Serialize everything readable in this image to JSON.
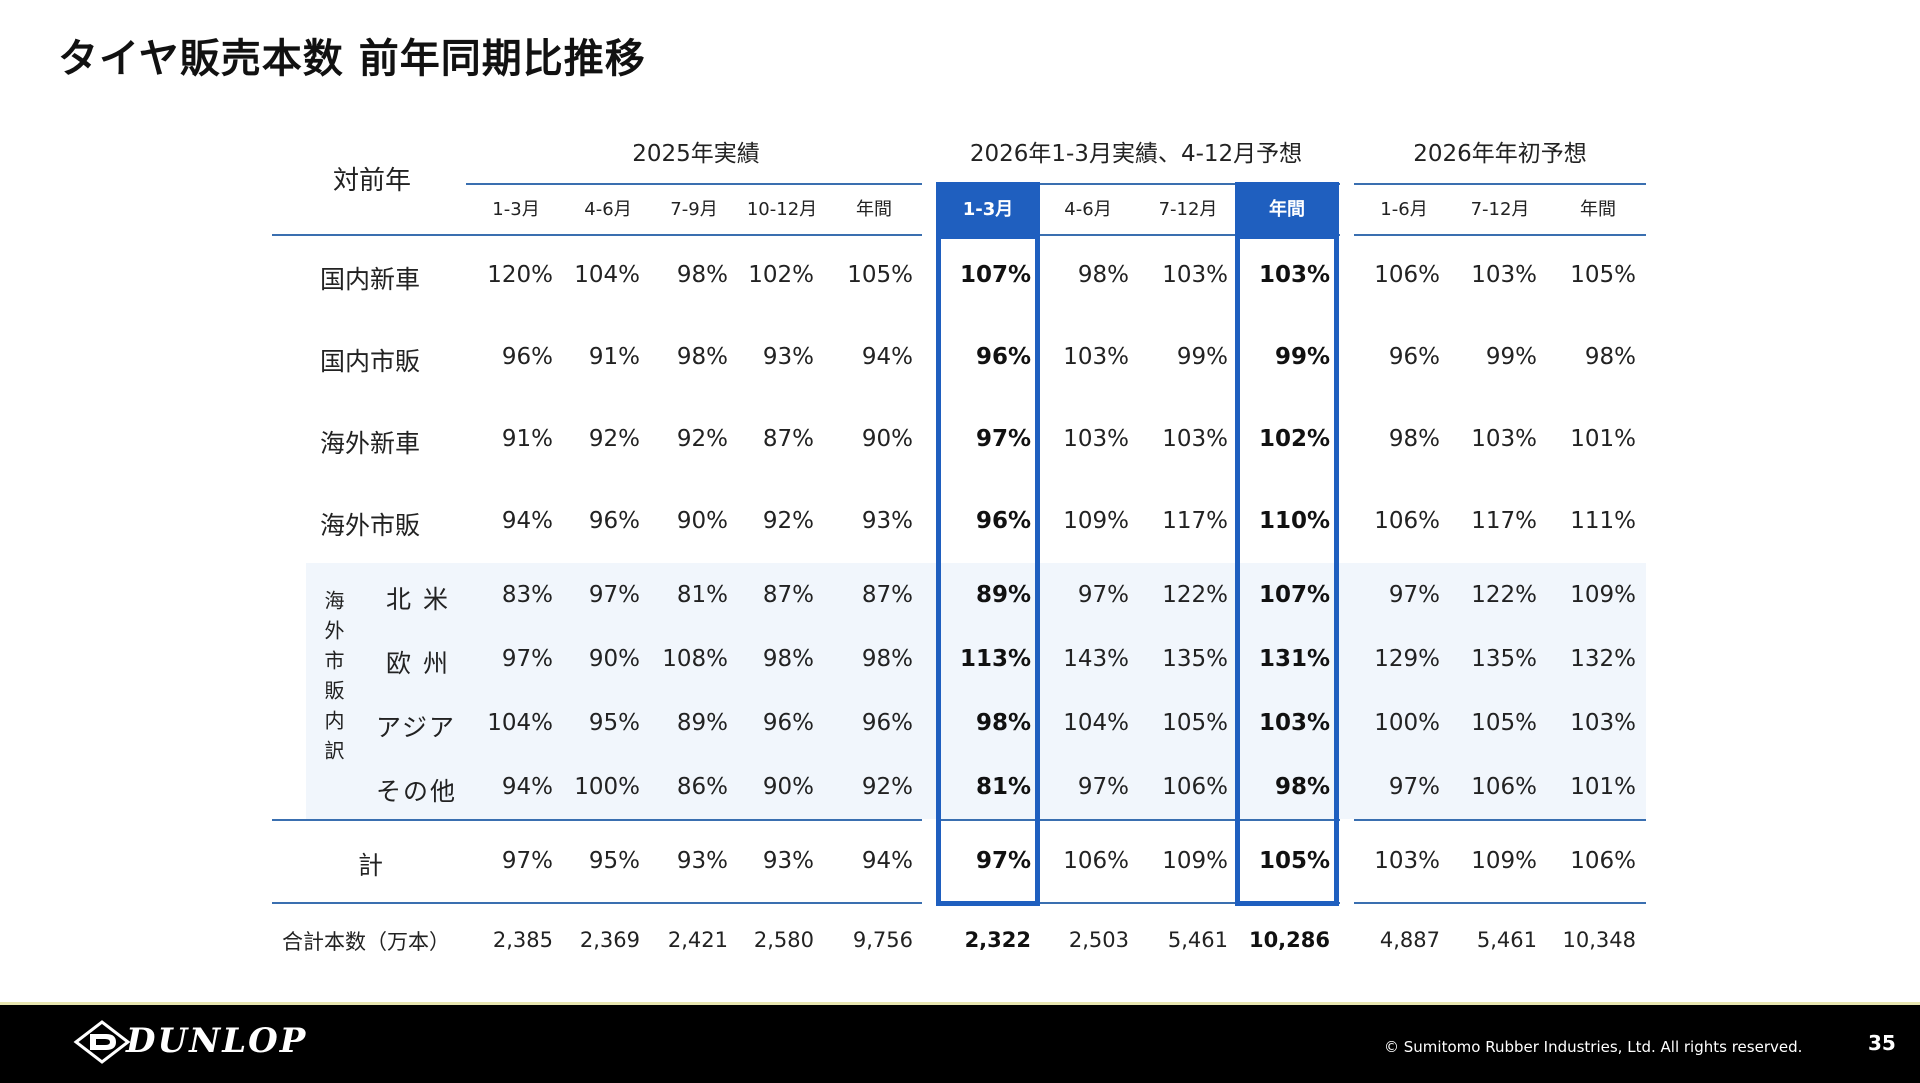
{
  "title": "タイヤ販売本数 前年同期比推移",
  "corner_label": "対前年",
  "groups": [
    {
      "label": "2025年実績"
    },
    {
      "label": "2026年1-3月実績、4-12月予想"
    },
    {
      "label": "2026年年初予想"
    }
  ],
  "columns": [
    "1-3月",
    "4-6月",
    "7-9月",
    "10-12月",
    "年間",
    "1-3月",
    "4-6月",
    "7-12月",
    "年間",
    "1-6月",
    "7-12月",
    "年間"
  ],
  "highlight_color": "#1f5fbf",
  "rows": [
    {
      "label": "国内新車",
      "values": [
        "120%",
        "104%",
        "98%",
        "102%",
        "105%",
        "107%",
        "98%",
        "103%",
        "103%",
        "106%",
        "103%",
        "105%"
      ]
    },
    {
      "label": "国内市販",
      "values": [
        "96%",
        "91%",
        "98%",
        "93%",
        "94%",
        "96%",
        "103%",
        "99%",
        "99%",
        "96%",
        "99%",
        "98%"
      ]
    },
    {
      "label": "海外新車",
      "values": [
        "91%",
        "92%",
        "92%",
        "87%",
        "90%",
        "97%",
        "103%",
        "103%",
        "102%",
        "98%",
        "103%",
        "101%"
      ]
    },
    {
      "label": "海外市販",
      "values": [
        "94%",
        "96%",
        "90%",
        "92%",
        "93%",
        "96%",
        "109%",
        "117%",
        "110%",
        "106%",
        "117%",
        "111%"
      ]
    }
  ],
  "breakdown_label": "海外市販内訳",
  "breakdown_rows": [
    {
      "label": "北 米",
      "values": [
        "83%",
        "97%",
        "81%",
        "87%",
        "87%",
        "89%",
        "97%",
        "122%",
        "107%",
        "97%",
        "122%",
        "109%"
      ]
    },
    {
      "label": "欧 州",
      "values": [
        "97%",
        "90%",
        "108%",
        "98%",
        "98%",
        "113%",
        "143%",
        "135%",
        "131%",
        "129%",
        "135%",
        "132%"
      ]
    },
    {
      "label": "アジア",
      "values": [
        "104%",
        "95%",
        "89%",
        "96%",
        "96%",
        "98%",
        "104%",
        "105%",
        "103%",
        "100%",
        "105%",
        "103%"
      ]
    },
    {
      "label": "その他",
      "values": [
        "94%",
        "100%",
        "86%",
        "90%",
        "92%",
        "81%",
        "97%",
        "106%",
        "98%",
        "97%",
        "106%",
        "101%"
      ]
    }
  ],
  "total_row": {
    "label": "計",
    "values": [
      "97%",
      "95%",
      "93%",
      "93%",
      "94%",
      "97%",
      "106%",
      "109%",
      "105%",
      "103%",
      "109%",
      "106%"
    ]
  },
  "units_row": {
    "label": "合計本数（万本）",
    "values": [
      "2,385",
      "2,369",
      "2,421",
      "2,580",
      "9,756",
      "2,322",
      "2,503",
      "5,461",
      "10,286",
      "4,887",
      "5,461",
      "10,348"
    ]
  },
  "footer": {
    "logo": "DUNLOP",
    "copyright": "© Sumitomo Rubber Industries, Ltd. All rights reserved.",
    "page_number": "35"
  }
}
